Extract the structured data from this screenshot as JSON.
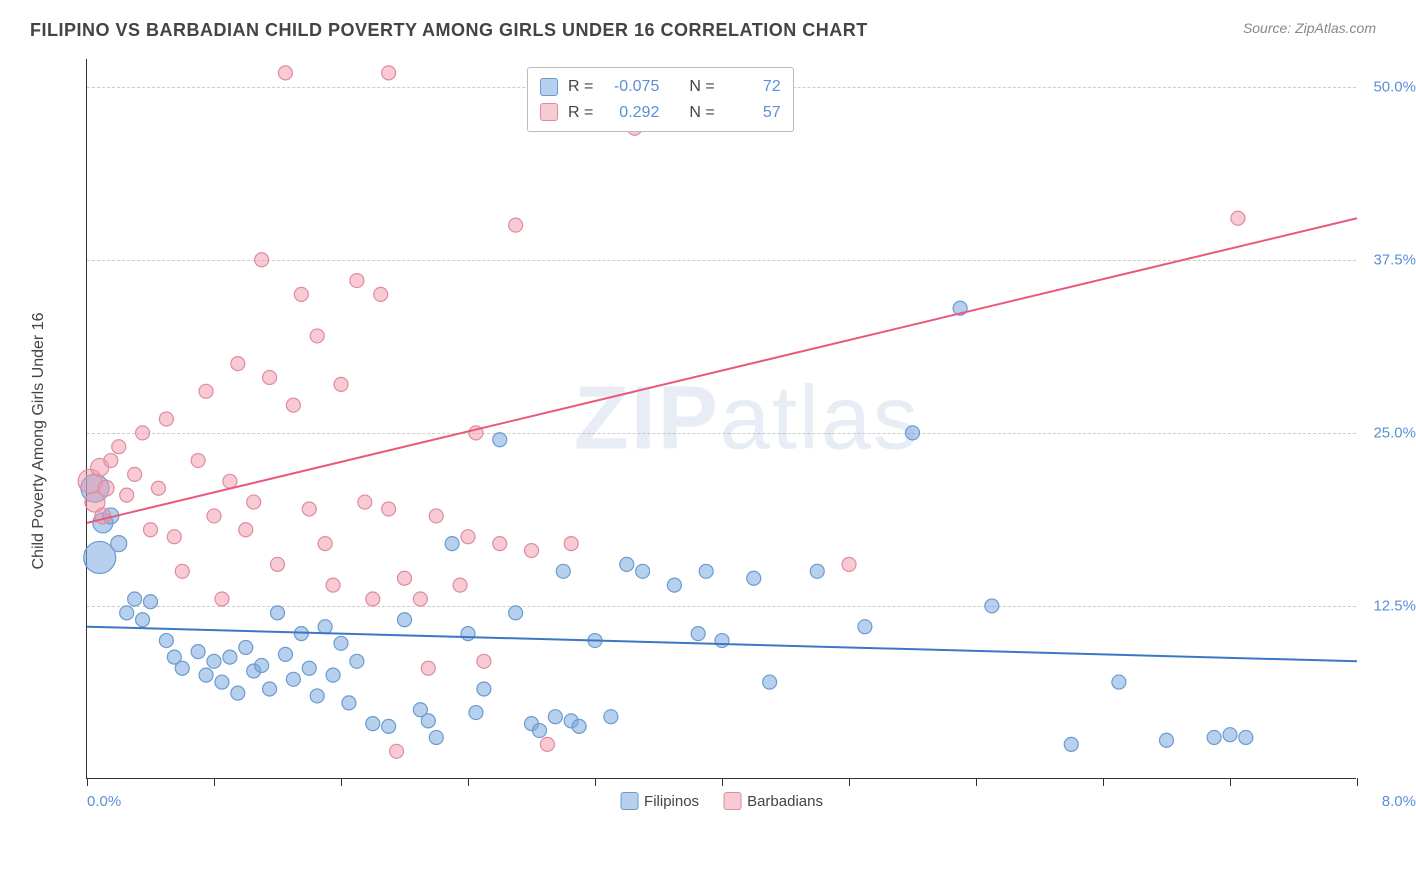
{
  "header": {
    "title": "FILIPINO VS BARBADIAN CHILD POVERTY AMONG GIRLS UNDER 16 CORRELATION CHART",
    "source": "Source: ZipAtlas.com"
  },
  "watermark": {
    "prefix": "ZIP",
    "suffix": "atlas"
  },
  "chart": {
    "type": "scatter",
    "y_axis_label": "Child Poverty Among Girls Under 16",
    "x_range": [
      0,
      8
    ],
    "y_range": [
      0,
      52
    ],
    "x_label_min": "0.0%",
    "x_label_max": "8.0%",
    "y_ticks": [
      12.5,
      25.0,
      37.5,
      50.0
    ],
    "y_tick_labels": [
      "12.5%",
      "25.0%",
      "37.5%",
      "50.0%"
    ],
    "x_tick_positions": [
      0,
      0.8,
      1.6,
      2.4,
      3.2,
      4.0,
      4.8,
      5.6,
      6.4,
      7.2,
      8.0
    ],
    "background_color": "#ffffff",
    "grid_color": "#cccccc",
    "series": [
      {
        "name": "Filipinos",
        "fill": "rgba(124,169,222,0.55)",
        "stroke": "#6b9bd1",
        "line_color": "#3b78c4",
        "line_width": 2,
        "trend": {
          "x1": 0,
          "y1": 11.0,
          "x2": 8,
          "y2": 8.5
        },
        "R": "-0.075",
        "N": "72",
        "points": [
          {
            "x": 0.05,
            "y": 21,
            "r": 14
          },
          {
            "x": 0.08,
            "y": 16,
            "r": 16
          },
          {
            "x": 0.1,
            "y": 18.5,
            "r": 10
          },
          {
            "x": 0.15,
            "y": 19,
            "r": 8
          },
          {
            "x": 0.2,
            "y": 17,
            "r": 8
          },
          {
            "x": 0.25,
            "y": 12,
            "r": 7
          },
          {
            "x": 0.3,
            "y": 13,
            "r": 7
          },
          {
            "x": 0.35,
            "y": 11.5,
            "r": 7
          },
          {
            "x": 0.4,
            "y": 12.8,
            "r": 7
          },
          {
            "x": 0.5,
            "y": 10,
            "r": 7
          },
          {
            "x": 0.55,
            "y": 8.8,
            "r": 7
          },
          {
            "x": 0.6,
            "y": 8,
            "r": 7
          },
          {
            "x": 0.7,
            "y": 9.2,
            "r": 7
          },
          {
            "x": 0.75,
            "y": 7.5,
            "r": 7
          },
          {
            "x": 0.8,
            "y": 8.5,
            "r": 7
          },
          {
            "x": 0.85,
            "y": 7,
            "r": 7
          },
          {
            "x": 0.9,
            "y": 8.8,
            "r": 7
          },
          {
            "x": 0.95,
            "y": 6.2,
            "r": 7
          },
          {
            "x": 1.0,
            "y": 9.5,
            "r": 7
          },
          {
            "x": 1.05,
            "y": 7.8,
            "r": 7
          },
          {
            "x": 1.1,
            "y": 8.2,
            "r": 7
          },
          {
            "x": 1.15,
            "y": 6.5,
            "r": 7
          },
          {
            "x": 1.2,
            "y": 12,
            "r": 7
          },
          {
            "x": 1.25,
            "y": 9,
            "r": 7
          },
          {
            "x": 1.3,
            "y": 7.2,
            "r": 7
          },
          {
            "x": 1.35,
            "y": 10.5,
            "r": 7
          },
          {
            "x": 1.4,
            "y": 8,
            "r": 7
          },
          {
            "x": 1.45,
            "y": 6,
            "r": 7
          },
          {
            "x": 1.5,
            "y": 11,
            "r": 7
          },
          {
            "x": 1.55,
            "y": 7.5,
            "r": 7
          },
          {
            "x": 1.6,
            "y": 9.8,
            "r": 7
          },
          {
            "x": 1.65,
            "y": 5.5,
            "r": 7
          },
          {
            "x": 1.7,
            "y": 8.5,
            "r": 7
          },
          {
            "x": 1.8,
            "y": 4,
            "r": 7
          },
          {
            "x": 1.9,
            "y": 3.8,
            "r": 7
          },
          {
            "x": 2.0,
            "y": 11.5,
            "r": 7
          },
          {
            "x": 2.1,
            "y": 5,
            "r": 7
          },
          {
            "x": 2.15,
            "y": 4.2,
            "r": 7
          },
          {
            "x": 2.2,
            "y": 3,
            "r": 7
          },
          {
            "x": 2.3,
            "y": 17,
            "r": 7
          },
          {
            "x": 2.4,
            "y": 10.5,
            "r": 7
          },
          {
            "x": 2.45,
            "y": 4.8,
            "r": 7
          },
          {
            "x": 2.5,
            "y": 6.5,
            "r": 7
          },
          {
            "x": 2.6,
            "y": 24.5,
            "r": 7
          },
          {
            "x": 2.7,
            "y": 12,
            "r": 7
          },
          {
            "x": 2.8,
            "y": 4,
            "r": 7
          },
          {
            "x": 2.85,
            "y": 3.5,
            "r": 7
          },
          {
            "x": 2.95,
            "y": 4.5,
            "r": 7
          },
          {
            "x": 3.0,
            "y": 15,
            "r": 7
          },
          {
            "x": 3.05,
            "y": 4.2,
            "r": 7
          },
          {
            "x": 3.1,
            "y": 3.8,
            "r": 7
          },
          {
            "x": 3.2,
            "y": 10,
            "r": 7
          },
          {
            "x": 3.3,
            "y": 4.5,
            "r": 7
          },
          {
            "x": 3.4,
            "y": 15.5,
            "r": 7
          },
          {
            "x": 3.5,
            "y": 15,
            "r": 7
          },
          {
            "x": 3.7,
            "y": 14,
            "r": 7
          },
          {
            "x": 3.85,
            "y": 10.5,
            "r": 7
          },
          {
            "x": 3.9,
            "y": 15,
            "r": 7
          },
          {
            "x": 4.0,
            "y": 10,
            "r": 7
          },
          {
            "x": 4.2,
            "y": 14.5,
            "r": 7
          },
          {
            "x": 4.3,
            "y": 7,
            "r": 7
          },
          {
            "x": 4.6,
            "y": 15,
            "r": 7
          },
          {
            "x": 4.9,
            "y": 11,
            "r": 7
          },
          {
            "x": 5.2,
            "y": 25,
            "r": 7
          },
          {
            "x": 5.5,
            "y": 34,
            "r": 7
          },
          {
            "x": 5.7,
            "y": 12.5,
            "r": 7
          },
          {
            "x": 6.2,
            "y": 2.5,
            "r": 7
          },
          {
            "x": 6.5,
            "y": 7,
            "r": 7
          },
          {
            "x": 6.8,
            "y": 2.8,
            "r": 7
          },
          {
            "x": 7.1,
            "y": 3,
            "r": 7
          },
          {
            "x": 7.2,
            "y": 3.2,
            "r": 7
          },
          {
            "x": 7.3,
            "y": 3,
            "r": 7
          }
        ]
      },
      {
        "name": "Barbadians",
        "fill": "rgba(240,150,170,0.5)",
        "stroke": "#e08ca0",
        "line_color": "#e85a7a",
        "line_width": 2,
        "trend": {
          "x1": 0,
          "y1": 18.5,
          "x2": 8,
          "y2": 40.5
        },
        "R": "0.292",
        "N": "57",
        "points": [
          {
            "x": 0.02,
            "y": 21.5,
            "r": 12
          },
          {
            "x": 0.05,
            "y": 20,
            "r": 10
          },
          {
            "x": 0.08,
            "y": 22.5,
            "r": 9
          },
          {
            "x": 0.1,
            "y": 19,
            "r": 8
          },
          {
            "x": 0.12,
            "y": 21,
            "r": 8
          },
          {
            "x": 0.15,
            "y": 23,
            "r": 7
          },
          {
            "x": 0.2,
            "y": 24,
            "r": 7
          },
          {
            "x": 0.25,
            "y": 20.5,
            "r": 7
          },
          {
            "x": 0.3,
            "y": 22,
            "r": 7
          },
          {
            "x": 0.35,
            "y": 25,
            "r": 7
          },
          {
            "x": 0.4,
            "y": 18,
            "r": 7
          },
          {
            "x": 0.45,
            "y": 21,
            "r": 7
          },
          {
            "x": 0.5,
            "y": 26,
            "r": 7
          },
          {
            "x": 0.55,
            "y": 17.5,
            "r": 7
          },
          {
            "x": 0.6,
            "y": 15,
            "r": 7
          },
          {
            "x": 0.7,
            "y": 23,
            "r": 7
          },
          {
            "x": 0.75,
            "y": 28,
            "r": 7
          },
          {
            "x": 0.8,
            "y": 19,
            "r": 7
          },
          {
            "x": 0.85,
            "y": 13,
            "r": 7
          },
          {
            "x": 0.9,
            "y": 21.5,
            "r": 7
          },
          {
            "x": 0.95,
            "y": 30,
            "r": 7
          },
          {
            "x": 1.0,
            "y": 18,
            "r": 7
          },
          {
            "x": 1.05,
            "y": 20,
            "r": 7
          },
          {
            "x": 1.1,
            "y": 37.5,
            "r": 7
          },
          {
            "x": 1.15,
            "y": 29,
            "r": 7
          },
          {
            "x": 1.2,
            "y": 15.5,
            "r": 7
          },
          {
            "x": 1.25,
            "y": 51,
            "r": 7
          },
          {
            "x": 1.3,
            "y": 27,
            "r": 7
          },
          {
            "x": 1.35,
            "y": 35,
            "r": 7
          },
          {
            "x": 1.4,
            "y": 19.5,
            "r": 7
          },
          {
            "x": 1.45,
            "y": 32,
            "r": 7
          },
          {
            "x": 1.5,
            "y": 17,
            "r": 7
          },
          {
            "x": 1.55,
            "y": 14,
            "r": 7
          },
          {
            "x": 1.6,
            "y": 28.5,
            "r": 7
          },
          {
            "x": 1.7,
            "y": 36,
            "r": 7
          },
          {
            "x": 1.75,
            "y": 20,
            "r": 7
          },
          {
            "x": 1.8,
            "y": 13,
            "r": 7
          },
          {
            "x": 1.85,
            "y": 35,
            "r": 7
          },
          {
            "x": 1.9,
            "y": 19.5,
            "r": 7
          },
          {
            "x": 1.9,
            "y": 51,
            "r": 7
          },
          {
            "x": 1.95,
            "y": 2,
            "r": 7
          },
          {
            "x": 2.0,
            "y": 14.5,
            "r": 7
          },
          {
            "x": 2.1,
            "y": 13,
            "r": 7
          },
          {
            "x": 2.15,
            "y": 8,
            "r": 7
          },
          {
            "x": 2.2,
            "y": 19,
            "r": 7
          },
          {
            "x": 2.35,
            "y": 14,
            "r": 7
          },
          {
            "x": 2.4,
            "y": 17.5,
            "r": 7
          },
          {
            "x": 2.45,
            "y": 25,
            "r": 7
          },
          {
            "x": 2.5,
            "y": 8.5,
            "r": 7
          },
          {
            "x": 2.6,
            "y": 17,
            "r": 7
          },
          {
            "x": 2.7,
            "y": 40,
            "r": 7
          },
          {
            "x": 2.8,
            "y": 16.5,
            "r": 7
          },
          {
            "x": 2.9,
            "y": 2.5,
            "r": 7
          },
          {
            "x": 3.05,
            "y": 17,
            "r": 7
          },
          {
            "x": 3.45,
            "y": 47,
            "r": 7
          },
          {
            "x": 4.8,
            "y": 15.5,
            "r": 7
          },
          {
            "x": 7.25,
            "y": 40.5,
            "r": 7
          }
        ]
      }
    ],
    "legend": {
      "items": [
        {
          "label": "Filipinos",
          "fill": "rgba(124,169,222,0.55)",
          "stroke": "#6b9bd1"
        },
        {
          "label": "Barbadians",
          "fill": "rgba(240,150,170,0.5)",
          "stroke": "#e08ca0"
        }
      ]
    },
    "stats_box": {
      "rows": [
        {
          "fill": "rgba(124,169,222,0.55)",
          "stroke": "#6b9bd1",
          "R_label": "R =",
          "R": "-0.075",
          "N_label": "N =",
          "N": "72"
        },
        {
          "fill": "rgba(240,150,170,0.5)",
          "stroke": "#e08ca0",
          "R_label": "R =",
          "R": "0.292",
          "N_label": "N =",
          "N": "57"
        }
      ]
    }
  }
}
